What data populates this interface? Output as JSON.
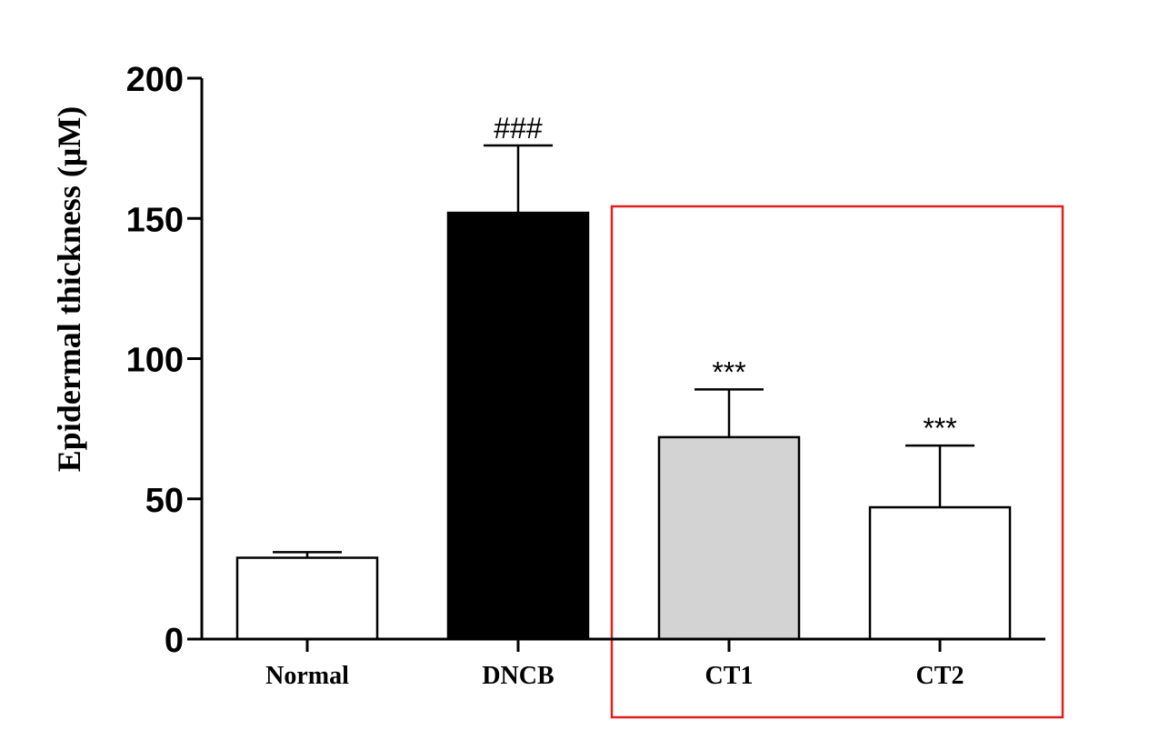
{
  "chart_data": {
    "type": "bar",
    "ylabel": "Epidermal thickness (μM)",
    "xlabel": "",
    "ylim": [
      0,
      200
    ],
    "yticks": [
      0,
      50,
      100,
      150,
      200
    ],
    "grid": false,
    "categories": [
      "Normal",
      "DNCB",
      "CT1",
      "CT2"
    ],
    "values": [
      29,
      152,
      72,
      47
    ],
    "errors": [
      2,
      24,
      17,
      22
    ],
    "significance": [
      "",
      "###",
      "***",
      "***"
    ],
    "bar_colors": [
      "#ffffff",
      "#000000",
      "#d3d3d3",
      "#ffffff"
    ],
    "highlight": {
      "categories": [
        "CT1",
        "CT2"
      ],
      "color": "#e02020"
    }
  }
}
